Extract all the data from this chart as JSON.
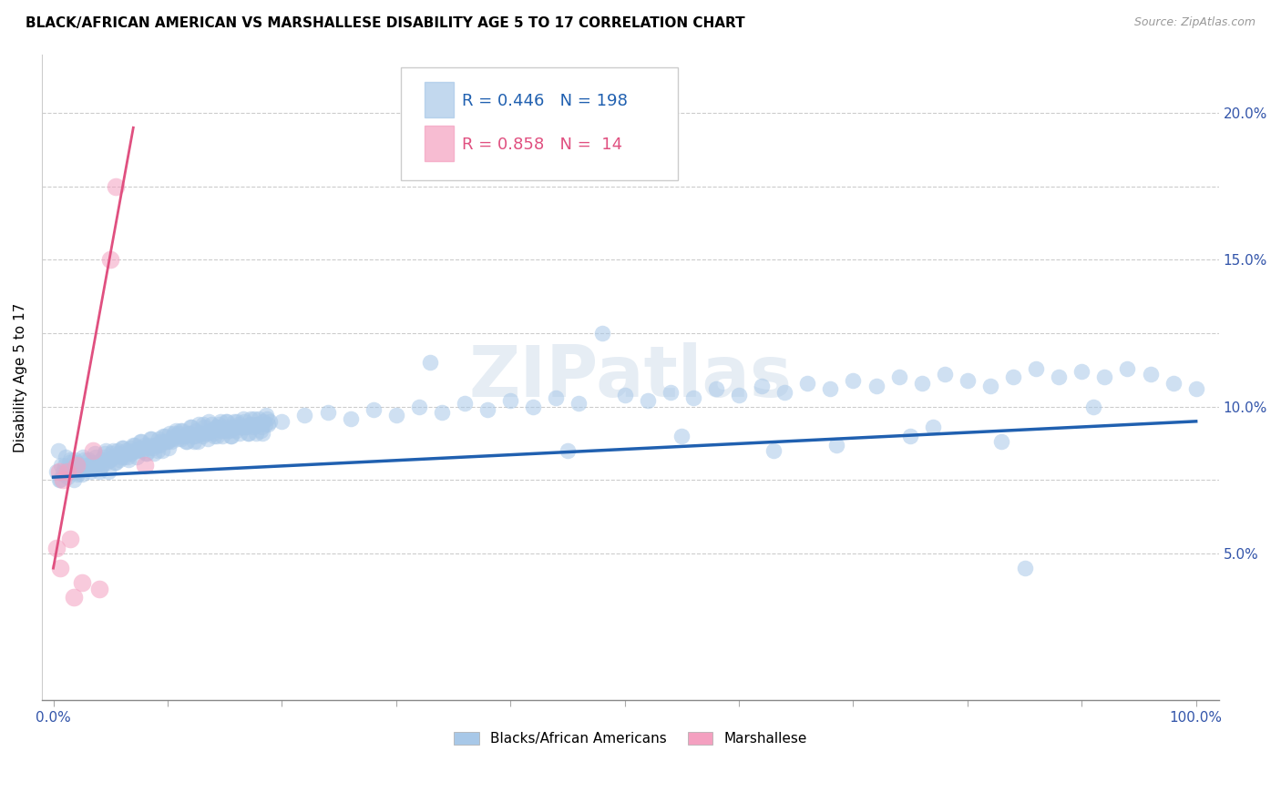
{
  "title": "BLACK/AFRICAN AMERICAN VS MARSHALLESE DISABILITY AGE 5 TO 17 CORRELATION CHART",
  "source": "Source: ZipAtlas.com",
  "ylabel": "Disability Age 5 to 17",
  "blue_R": 0.446,
  "blue_N": 198,
  "pink_R": 0.858,
  "pink_N": 14,
  "blue_color": "#a8c8e8",
  "pink_color": "#f4a0c0",
  "blue_line_color": "#2060b0",
  "pink_line_color": "#e05080",
  "watermark": "ZIPatlas",
  "legend_label_blue": "Blacks/African Americans",
  "legend_label_pink": "Marshallese",
  "blue_scatter": [
    [
      0.5,
      7.5
    ],
    [
      0.8,
      7.8
    ],
    [
      1.0,
      8.0
    ],
    [
      1.2,
      7.6
    ],
    [
      1.5,
      8.2
    ],
    [
      1.7,
      7.9
    ],
    [
      1.8,
      7.5
    ],
    [
      2.0,
      8.1
    ],
    [
      2.2,
      7.8
    ],
    [
      2.3,
      8.0
    ],
    [
      2.5,
      7.7
    ],
    [
      2.7,
      8.2
    ],
    [
      2.8,
      7.9
    ],
    [
      3.0,
      8.0
    ],
    [
      3.2,
      7.8
    ],
    [
      3.3,
      8.1
    ],
    [
      3.5,
      7.9
    ],
    [
      3.7,
      8.3
    ],
    [
      3.8,
      8.0
    ],
    [
      4.0,
      7.8
    ],
    [
      4.2,
      8.2
    ],
    [
      4.3,
      8.0
    ],
    [
      4.5,
      8.4
    ],
    [
      4.7,
      8.1
    ],
    [
      4.8,
      7.8
    ],
    [
      5.0,
      8.2
    ],
    [
      5.2,
      8.5
    ],
    [
      5.3,
      8.3
    ],
    [
      5.5,
      8.1
    ],
    [
      5.7,
      8.4
    ],
    [
      5.8,
      8.2
    ],
    [
      6.0,
      8.6
    ],
    [
      6.2,
      8.3
    ],
    [
      6.3,
      8.5
    ],
    [
      6.5,
      8.3
    ],
    [
      6.7,
      8.6
    ],
    [
      6.8,
      8.4
    ],
    [
      7.0,
      8.7
    ],
    [
      7.2,
      8.5
    ],
    [
      7.3,
      8.3
    ],
    [
      7.5,
      8.6
    ],
    [
      7.7,
      8.8
    ],
    [
      7.8,
      8.5
    ],
    [
      8.0,
      8.7
    ],
    [
      8.2,
      8.4
    ],
    [
      8.3,
      8.6
    ],
    [
      8.5,
      8.9
    ],
    [
      8.7,
      8.6
    ],
    [
      8.8,
      8.4
    ],
    [
      9.0,
      8.7
    ],
    [
      9.2,
      8.9
    ],
    [
      9.3,
      8.7
    ],
    [
      9.5,
      8.5
    ],
    [
      9.7,
      8.8
    ],
    [
      9.8,
      9.0
    ],
    [
      10.0,
      8.8
    ],
    [
      10.2,
      9.1
    ],
    [
      10.3,
      8.8
    ],
    [
      10.5,
      9.0
    ],
    [
      10.7,
      9.2
    ],
    [
      10.8,
      9.0
    ],
    [
      11.0,
      9.1
    ],
    [
      11.2,
      8.9
    ],
    [
      11.3,
      9.2
    ],
    [
      11.5,
      9.0
    ],
    [
      11.7,
      8.8
    ],
    [
      11.8,
      9.1
    ],
    [
      12.0,
      9.3
    ],
    [
      12.2,
      9.0
    ],
    [
      12.3,
      8.8
    ],
    [
      12.5,
      9.2
    ],
    [
      12.7,
      9.4
    ],
    [
      12.8,
      9.1
    ],
    [
      13.0,
      9.0
    ],
    [
      13.2,
      9.3
    ],
    [
      13.3,
      9.1
    ],
    [
      13.5,
      8.9
    ],
    [
      13.7,
      9.2
    ],
    [
      13.8,
      9.4
    ],
    [
      14.0,
      9.1
    ],
    [
      14.2,
      9.3
    ],
    [
      14.3,
      9.0
    ],
    [
      14.5,
      9.4
    ],
    [
      14.7,
      9.2
    ],
    [
      14.8,
      9.0
    ],
    [
      15.0,
      9.3
    ],
    [
      15.2,
      9.5
    ],
    [
      15.3,
      9.2
    ],
    [
      15.5,
      9.0
    ],
    [
      15.7,
      9.3
    ],
    [
      15.8,
      9.5
    ],
    [
      16.0,
      9.2
    ],
    [
      16.2,
      9.4
    ],
    [
      16.3,
      9.1
    ],
    [
      16.5,
      9.3
    ],
    [
      16.7,
      9.5
    ],
    [
      16.8,
      9.3
    ],
    [
      17.0,
      9.1
    ],
    [
      17.2,
      9.4
    ],
    [
      17.3,
      9.6
    ],
    [
      17.5,
      9.3
    ],
    [
      17.7,
      9.1
    ],
    [
      17.8,
      9.4
    ],
    [
      18.0,
      9.6
    ],
    [
      18.2,
      9.3
    ],
    [
      18.3,
      9.1
    ],
    [
      18.5,
      9.4
    ],
    [
      18.7,
      9.6
    ],
    [
      18.8,
      9.4
    ],
    [
      0.3,
      7.8
    ],
    [
      0.4,
      8.5
    ],
    [
      0.6,
      7.5
    ],
    [
      0.7,
      8.0
    ],
    [
      0.9,
      7.7
    ],
    [
      1.1,
      8.3
    ],
    [
      1.3,
      7.9
    ],
    [
      1.4,
      8.1
    ],
    [
      1.6,
      7.8
    ],
    [
      1.9,
      8.2
    ],
    [
      2.1,
      7.7
    ],
    [
      2.4,
      8.0
    ],
    [
      2.6,
      8.3
    ],
    [
      2.9,
      7.9
    ],
    [
      3.1,
      8.2
    ],
    [
      3.4,
      8.0
    ],
    [
      3.6,
      8.4
    ],
    [
      3.9,
      8.1
    ],
    [
      4.1,
      7.9
    ],
    [
      4.4,
      8.3
    ],
    [
      4.6,
      8.5
    ],
    [
      4.9,
      8.2
    ],
    [
      5.1,
      8.4
    ],
    [
      5.4,
      8.1
    ],
    [
      5.6,
      8.5
    ],
    [
      5.9,
      8.3
    ],
    [
      6.1,
      8.6
    ],
    [
      6.4,
      8.4
    ],
    [
      6.6,
      8.2
    ],
    [
      6.9,
      8.5
    ],
    [
      7.1,
      8.7
    ],
    [
      7.4,
      8.5
    ],
    [
      7.6,
      8.8
    ],
    [
      7.9,
      8.6
    ],
    [
      8.1,
      8.4
    ],
    [
      8.4,
      8.7
    ],
    [
      8.6,
      8.9
    ],
    [
      8.9,
      8.7
    ],
    [
      9.1,
      8.5
    ],
    [
      9.4,
      8.8
    ],
    [
      9.6,
      9.0
    ],
    [
      9.9,
      8.8
    ],
    [
      10.1,
      8.6
    ],
    [
      10.4,
      8.9
    ],
    [
      10.6,
      9.1
    ],
    [
      10.9,
      8.9
    ],
    [
      11.1,
      9.2
    ],
    [
      11.4,
      9.0
    ],
    [
      11.6,
      8.8
    ],
    [
      11.9,
      9.1
    ],
    [
      12.1,
      9.3
    ],
    [
      12.4,
      9.0
    ],
    [
      12.6,
      8.8
    ],
    [
      12.9,
      9.1
    ],
    [
      13.1,
      9.4
    ],
    [
      13.4,
      9.1
    ],
    [
      13.6,
      9.5
    ],
    [
      13.9,
      9.2
    ],
    [
      14.1,
      9.0
    ],
    [
      14.4,
      9.3
    ],
    [
      14.6,
      9.5
    ],
    [
      14.9,
      9.2
    ],
    [
      15.1,
      9.5
    ],
    [
      15.4,
      9.2
    ],
    [
      15.6,
      9.0
    ],
    [
      15.9,
      9.3
    ],
    [
      16.1,
      9.5
    ],
    [
      16.4,
      9.3
    ],
    [
      16.6,
      9.6
    ],
    [
      16.9,
      9.3
    ],
    [
      17.1,
      9.1
    ],
    [
      17.4,
      9.4
    ],
    [
      17.6,
      9.6
    ],
    [
      17.9,
      9.4
    ],
    [
      18.1,
      9.2
    ],
    [
      18.4,
      9.5
    ],
    [
      18.6,
      9.7
    ],
    [
      18.9,
      9.5
    ],
    [
      20.0,
      9.5
    ],
    [
      22.0,
      9.7
    ],
    [
      24.0,
      9.8
    ],
    [
      26.0,
      9.6
    ],
    [
      28.0,
      9.9
    ],
    [
      30.0,
      9.7
    ],
    [
      32.0,
      10.0
    ],
    [
      34.0,
      9.8
    ],
    [
      36.0,
      10.1
    ],
    [
      38.0,
      9.9
    ],
    [
      40.0,
      10.2
    ],
    [
      42.0,
      10.0
    ],
    [
      44.0,
      10.3
    ],
    [
      46.0,
      10.1
    ],
    [
      48.0,
      12.5
    ],
    [
      50.0,
      10.4
    ],
    [
      52.0,
      10.2
    ],
    [
      54.0,
      10.5
    ],
    [
      56.0,
      10.3
    ],
    [
      58.0,
      10.6
    ],
    [
      60.0,
      10.4
    ],
    [
      62.0,
      10.7
    ],
    [
      64.0,
      10.5
    ],
    [
      66.0,
      10.8
    ],
    [
      68.0,
      10.6
    ],
    [
      70.0,
      10.9
    ],
    [
      72.0,
      10.7
    ],
    [
      74.0,
      11.0
    ],
    [
      76.0,
      10.8
    ],
    [
      78.0,
      11.1
    ],
    [
      80.0,
      10.9
    ],
    [
      82.0,
      10.7
    ],
    [
      84.0,
      11.0
    ],
    [
      86.0,
      11.3
    ],
    [
      88.0,
      11.0
    ],
    [
      90.0,
      11.2
    ],
    [
      92.0,
      11.0
    ],
    [
      94.0,
      11.3
    ],
    [
      96.0,
      11.1
    ],
    [
      98.0,
      10.8
    ],
    [
      100.0,
      10.6
    ],
    [
      85.0,
      4.5
    ],
    [
      33.0,
      11.5
    ],
    [
      55.0,
      9.0
    ],
    [
      75.0,
      9.0
    ],
    [
      63.0,
      8.5
    ],
    [
      45.0,
      8.5
    ],
    [
      68.5,
      8.7
    ],
    [
      77.0,
      9.3
    ],
    [
      83.0,
      8.8
    ],
    [
      91.0,
      10.0
    ]
  ],
  "pink_scatter": [
    [
      0.5,
      7.8
    ],
    [
      0.8,
      7.5
    ],
    [
      1.2,
      7.8
    ],
    [
      2.0,
      8.0
    ],
    [
      3.5,
      8.5
    ],
    [
      5.0,
      15.0
    ],
    [
      5.5,
      17.5
    ],
    [
      0.3,
      5.2
    ],
    [
      0.6,
      4.5
    ],
    [
      1.5,
      5.5
    ],
    [
      2.5,
      4.0
    ],
    [
      4.0,
      3.8
    ],
    [
      1.8,
      3.5
    ],
    [
      8.0,
      8.0
    ]
  ],
  "blue_line_x": [
    0,
    100
  ],
  "blue_line_y": [
    7.6,
    9.5
  ],
  "pink_line_x": [
    0,
    7.0
  ],
  "pink_line_y": [
    4.5,
    19.5
  ],
  "xlim": [
    -1,
    102
  ],
  "ylim": [
    0,
    22
  ],
  "y_ticks": [
    5.0,
    10.0,
    15.0,
    20.0
  ],
  "y_grid": [
    5.0,
    7.5,
    10.0,
    12.5,
    15.0,
    17.5,
    20.0
  ],
  "x_ticks": [
    0,
    10,
    20,
    30,
    40,
    50,
    60,
    70,
    80,
    90,
    100
  ]
}
